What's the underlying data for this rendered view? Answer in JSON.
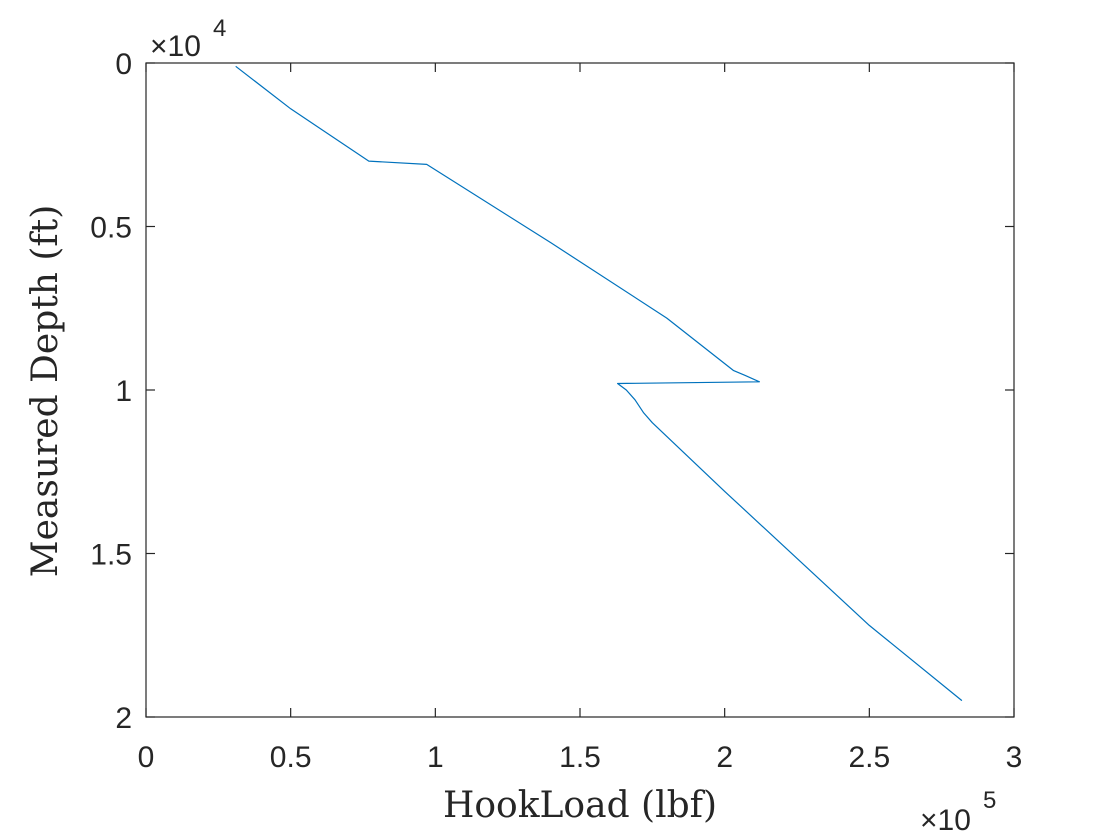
{
  "chart_data": {
    "type": "line",
    "xlabel": "HookLoad (lbf)",
    "ylabel": "Measured Depth (ft)",
    "x_multiplier": "×10",
    "x_exponent": "5",
    "y_multiplier": "×10",
    "y_exponent": "4",
    "xlim": [
      0,
      3
    ],
    "ylim": [
      0,
      2
    ],
    "y_reversed": true,
    "x_ticks": [
      0,
      0.5,
      1,
      1.5,
      2,
      2.5,
      3
    ],
    "y_ticks": [
      0,
      0.5,
      1,
      1.5,
      2
    ],
    "x_tick_labels": [
      "0",
      "0.5",
      "1",
      "1.5",
      "2",
      "2.5",
      "3"
    ],
    "y_tick_labels": [
      "0",
      "0.5",
      "1",
      "1.5",
      "2"
    ],
    "grid": false,
    "line_color": "#0072BD",
    "series": [
      {
        "x": [
          0.31,
          0.5,
          0.77,
          0.97,
          1.4,
          1.8,
          2.03,
          2.07,
          2.12,
          1.63,
          1.66,
          1.69,
          1.72,
          1.75,
          2.0,
          2.5,
          2.82
        ],
        "y": [
          0.01,
          0.14,
          0.3,
          0.31,
          0.55,
          0.78,
          0.94,
          0.955,
          0.975,
          0.98,
          1.0,
          1.03,
          1.07,
          1.1,
          1.31,
          1.72,
          1.95
        ]
      }
    ]
  }
}
